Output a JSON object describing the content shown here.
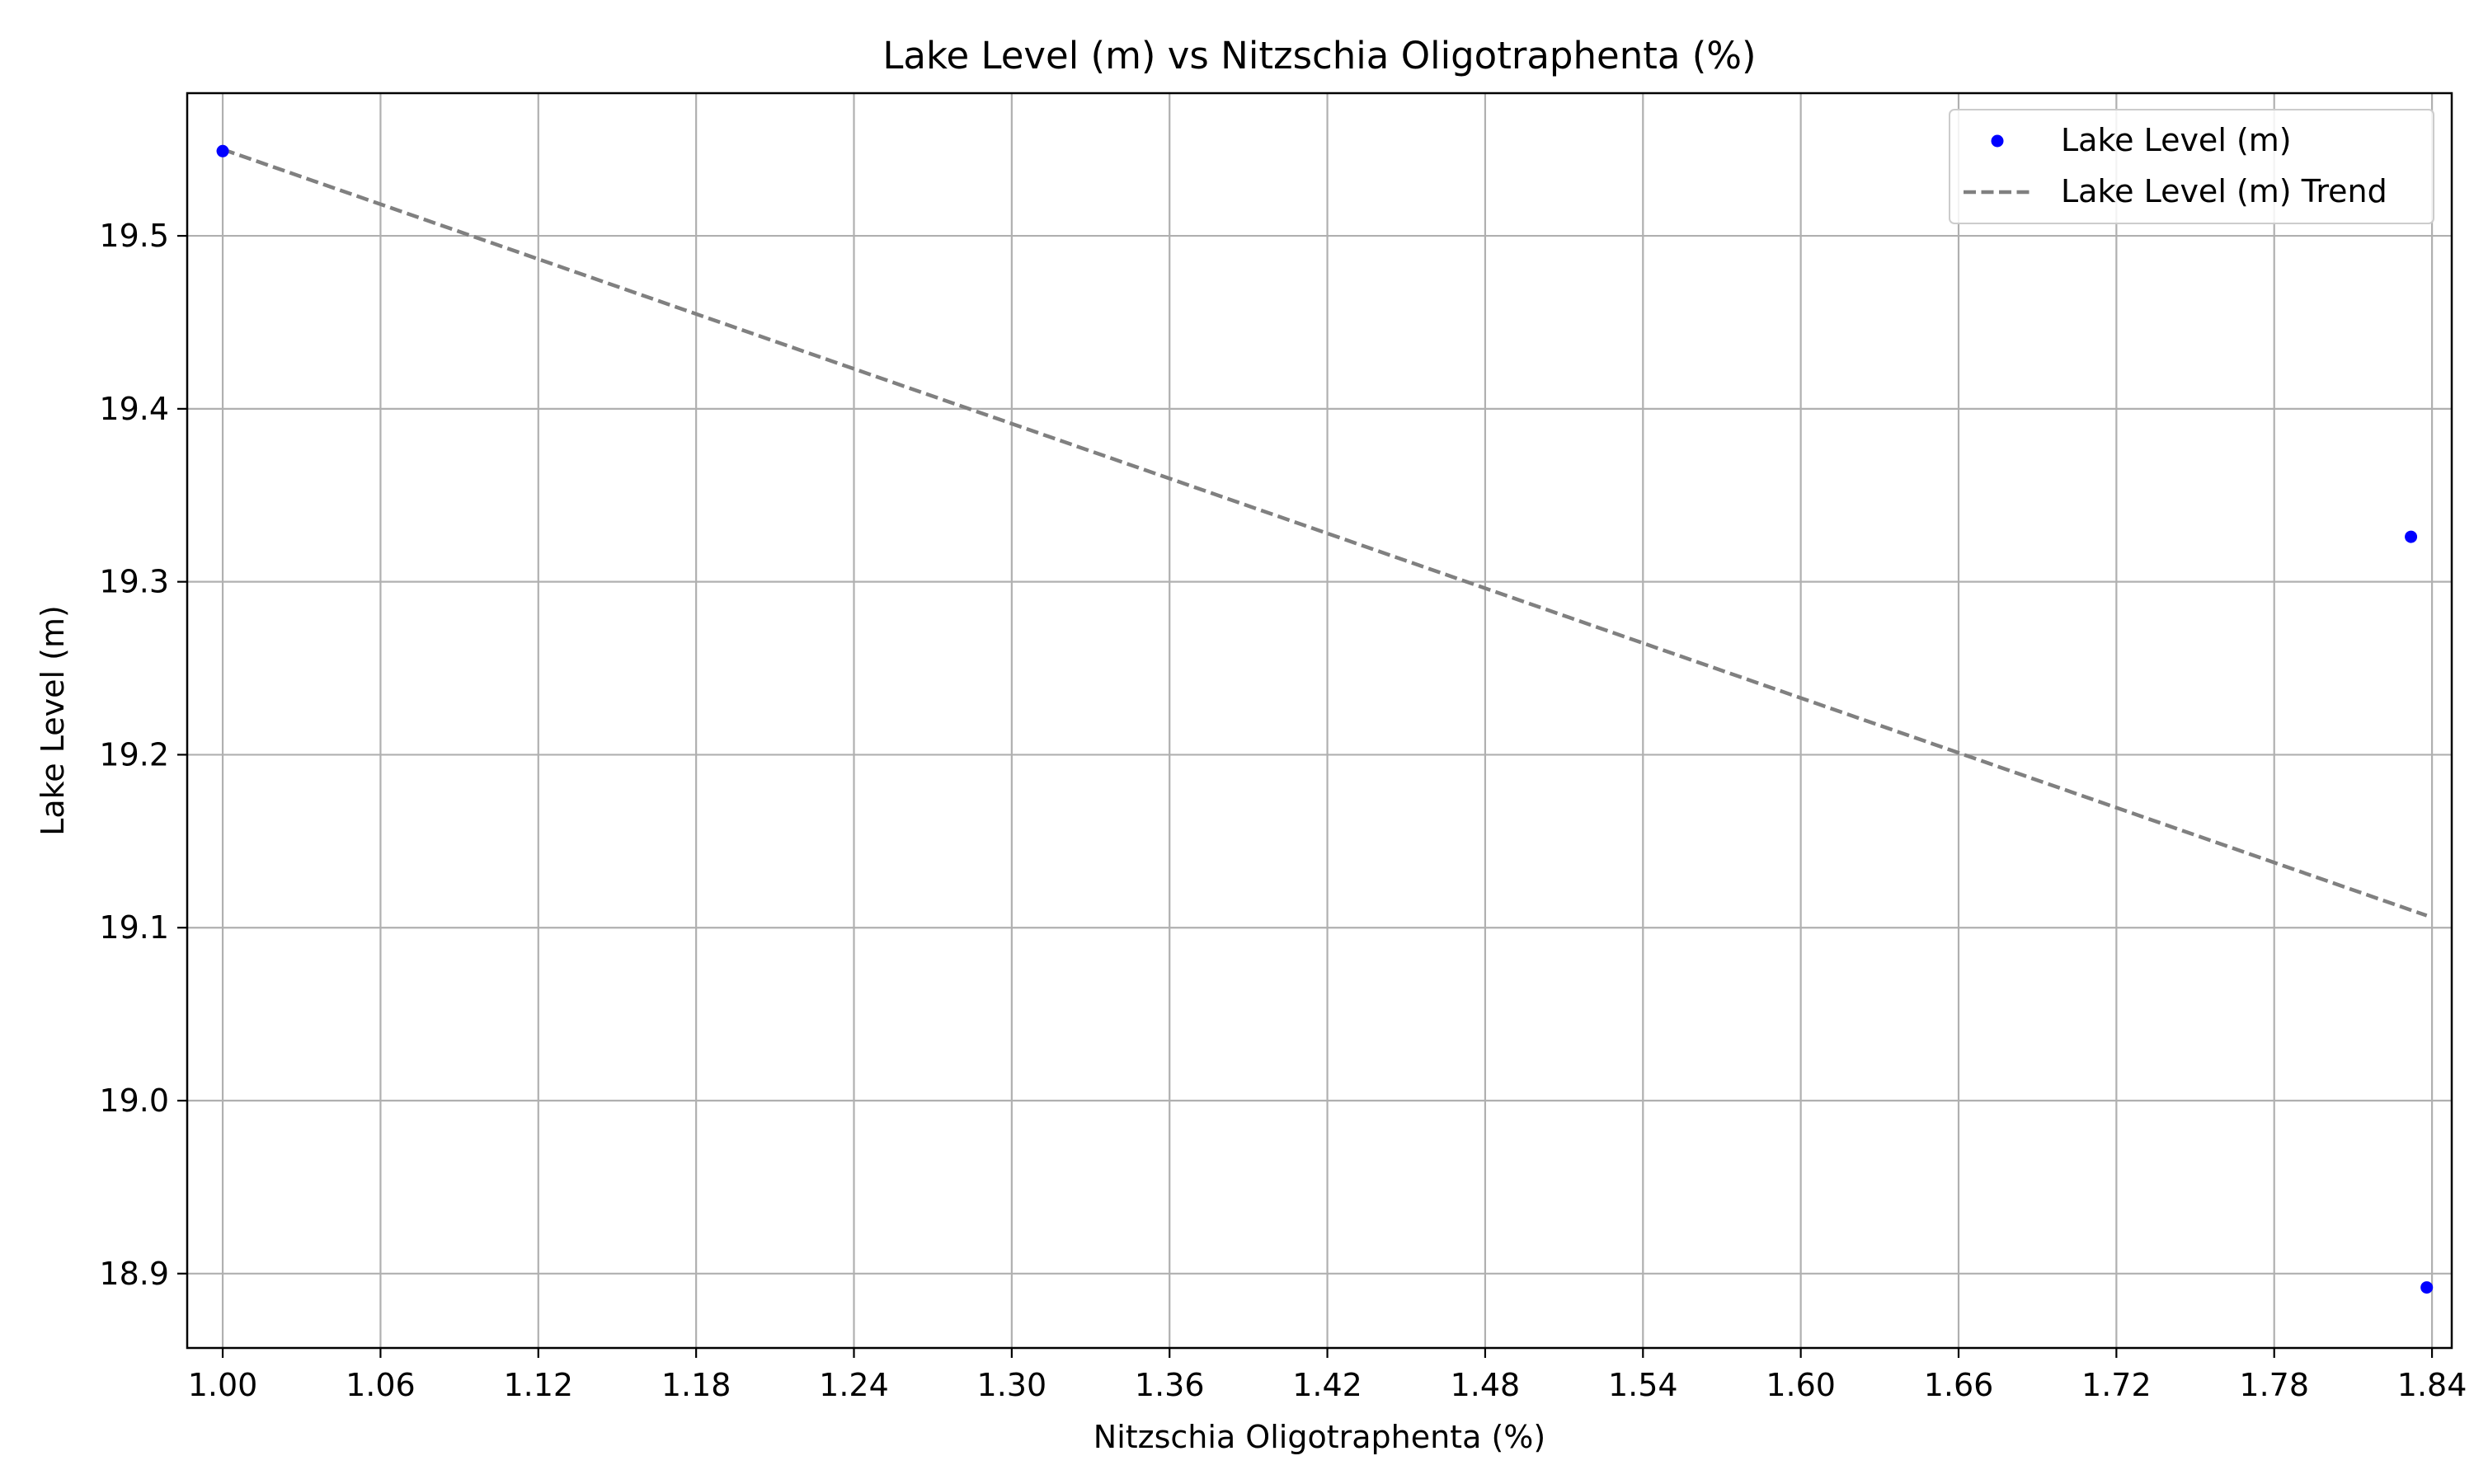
{
  "chart_data": {
    "type": "scatter",
    "title": "Lake Level (m) vs Nitzschia Oligotraphenta (%)",
    "xlabel": "Nitzschia Oligotraphenta (%)",
    "ylabel": "Lake Level (m)",
    "xlim": [
      0.9865,
      1.8475
    ],
    "ylim": [
      18.857,
      19.5825
    ],
    "xticks": [
      1.0,
      1.06,
      1.12,
      1.18,
      1.24,
      1.3,
      1.36,
      1.42,
      1.48,
      1.54,
      1.6,
      1.66,
      1.72,
      1.78,
      1.84
    ],
    "xtick_labels": [
      "1.00",
      "1.06",
      "1.12",
      "1.18",
      "1.24",
      "1.30",
      "1.36",
      "1.42",
      "1.48",
      "1.54",
      "1.60",
      "1.66",
      "1.72",
      "1.78",
      "1.84"
    ],
    "yticks": [
      18.9,
      19.0,
      19.1,
      19.2,
      19.3,
      19.4,
      19.5
    ],
    "ytick_labels": [
      "18.9",
      "19.0",
      "19.1",
      "19.2",
      "19.3",
      "19.4",
      "19.5"
    ],
    "grid": true,
    "legend_position": "top-right",
    "series": [
      {
        "name": "Lake Level (m)",
        "kind": "scatter",
        "color": "#0000ff",
        "points": [
          {
            "x": 1.0,
            "y": 19.549
          },
          {
            "x": 1.832,
            "y": 19.326
          },
          {
            "x": 1.838,
            "y": 18.892
          }
        ]
      },
      {
        "name": "Lake Level (m) Trend",
        "kind": "line",
        "style": "dashed",
        "color": "#808080",
        "points": [
          {
            "x": 1.0,
            "y": 19.55
          },
          {
            "x": 1.838,
            "y": 19.107
          }
        ]
      }
    ]
  }
}
